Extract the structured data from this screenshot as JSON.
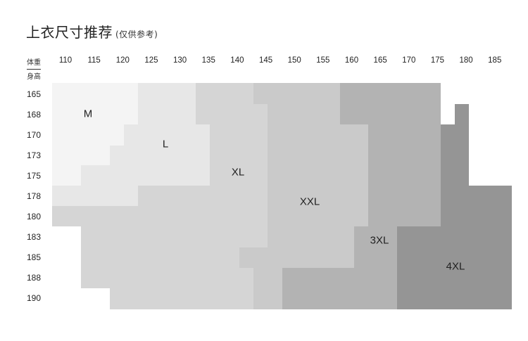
{
  "header": {
    "title": "上衣尺寸推荐",
    "subtitle": "(仅供参考)"
  },
  "chart_data": {
    "type": "heatmap",
    "xlabel": "体重",
    "ylabel": "身高",
    "x_ticks": [
      "110",
      "115",
      "120",
      "125",
      "130",
      "135",
      "140",
      "145",
      "150",
      "155",
      "160",
      "165",
      "170",
      "175",
      "180",
      "185"
    ],
    "y_ticks": [
      "165",
      "168",
      "170",
      "173",
      "175",
      "178",
      "180",
      "183",
      "185",
      "188",
      "190"
    ],
    "sizes": [
      {
        "name": "M",
        "color": "#f4f4f4"
      },
      {
        "name": "L",
        "color": "#e7e7e7"
      },
      {
        "name": "XL",
        "color": "#d5d5d5"
      },
      {
        "name": "XXL",
        "color": "#cacaca"
      },
      {
        "name": "3XL",
        "color": "#b3b3b3"
      },
      {
        "name": "4XL",
        "color": "#959595"
      }
    ]
  }
}
